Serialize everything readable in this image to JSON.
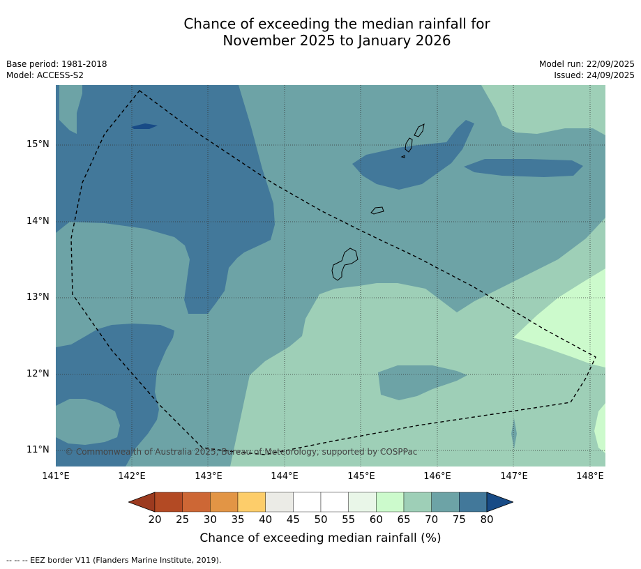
{
  "title": {
    "line1": "Chance of exceeding the median rainfall for",
    "line2": "November 2025 to January 2026"
  },
  "meta_left": {
    "base_period": "Base period: 1981-2018",
    "model": "Model: ACCESS-S2"
  },
  "meta_right": {
    "model_run": "Model run: 22/09/2025",
    "issued": "Issued: 24/09/2025"
  },
  "map": {
    "lat_ticks": [
      "15°N",
      "14°N",
      "13°N",
      "12°N",
      "11°N"
    ],
    "lon_ticks": [
      "141°E",
      "142°E",
      "143°E",
      "144°E",
      "145°E",
      "146°E",
      "147°E",
      "148°E"
    ],
    "copyright": "© Commonwealth of Australia 2025, Bureau of Meteorology, supported by COSPPac",
    "features": [
      "Guam",
      "Rota",
      "Tinian",
      "Saipan",
      "EEZ border"
    ]
  },
  "colorbar": {
    "labels": [
      "20",
      "25",
      "30",
      "35",
      "40",
      "45",
      "50",
      "55",
      "60",
      "65",
      "70",
      "75",
      "80"
    ],
    "colors": {
      "below_20": "#9c3a1f",
      "20_25": "#b34a24",
      "25_30": "#cd6735",
      "30_35": "#e29545",
      "35_40": "#fdcd6a",
      "40_45": "#ebebe6",
      "45_50": "#ffffff",
      "50_55": "#ffffff",
      "55_60": "#e9f6e8",
      "60_65": "#ccfacc",
      "65_70": "#9ecfb7",
      "70_75": "#6da3a6",
      "75_80": "#42789a",
      "above_80": "#184b86"
    },
    "title": "Chance of exceeding median rainfall (%)"
  },
  "legend_note": "--  --  -- EEZ border V11 (Flanders Marine Institute, 2019)."
}
